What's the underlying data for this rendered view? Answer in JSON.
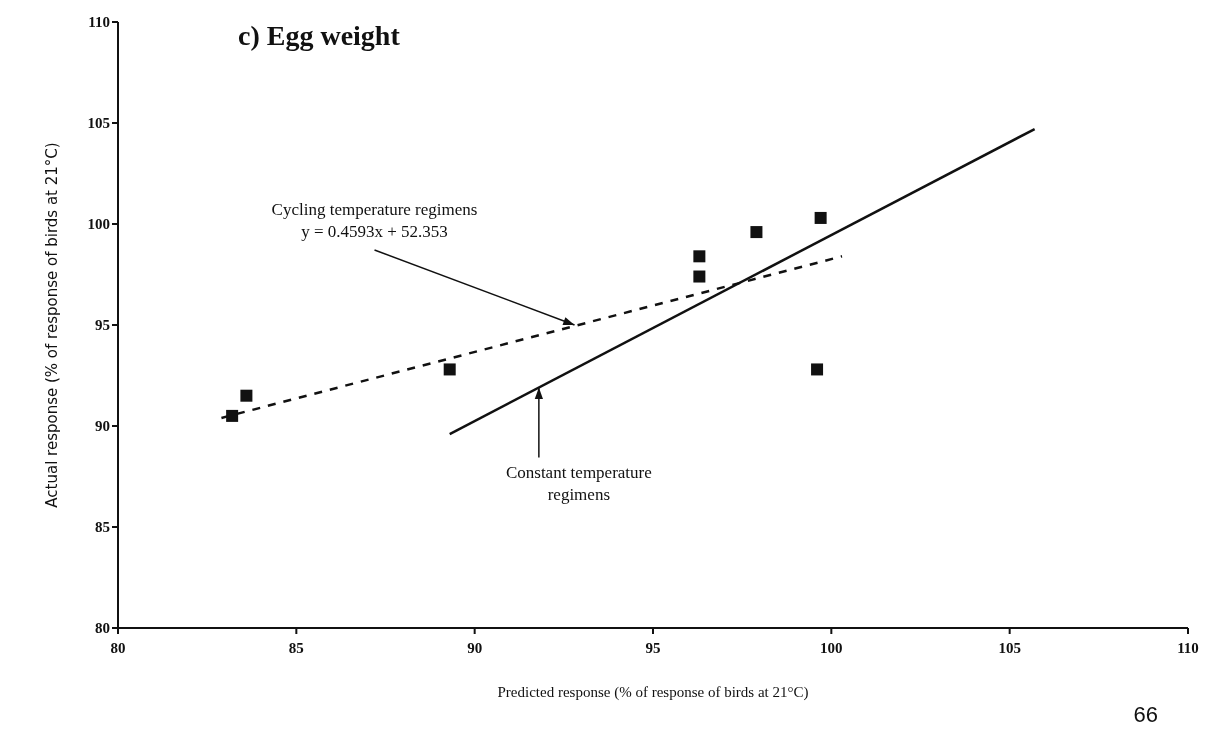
{
  "chart_data": {
    "type": "scatter",
    "title": "c) Egg weight",
    "xlabel": "Predicted response (% of response of birds at 21°C)",
    "ylabel": "Actual response (% of response of birds at 21°C)",
    "xlim": [
      80,
      110
    ],
    "xticks": [
      80,
      85,
      90,
      95,
      100,
      105,
      110
    ],
    "ylim": [
      80,
      110
    ],
    "yticks": [
      80,
      85,
      90,
      95,
      100,
      105,
      110
    ],
    "marker": "square",
    "series": [
      {
        "color": "#111111",
        "x": [
          83.2,
          83.6,
          89.3,
          96.3,
          96.3,
          97.9,
          99.7,
          99.6
        ],
        "values": [
          90.5,
          91.5,
          92.8,
          97.4,
          98.4,
          99.6,
          100.3,
          92.8
        ]
      },
      {
        "type": "line",
        "color": "#111111",
        "line_style": "dashed",
        "marker": "none",
        "x": [
          82.9,
          100.3
        ],
        "values": [
          90.4,
          98.4
        ]
      },
      {
        "type": "line",
        "color": "#111111",
        "line_style": "solid",
        "marker": "none",
        "x": [
          89.3,
          105.7
        ],
        "values": [
          89.6,
          104.7
        ]
      }
    ],
    "annotations": [
      {
        "text": "Cycling temperature regimens\ny = 0.4593x + 52.353",
        "x": 92.8,
        "y": 95.0
      },
      {
        "text": "Constant temperature\nregimens",
        "x": 91.8,
        "y": 91.9
      },
      "66"
    ]
  }
}
